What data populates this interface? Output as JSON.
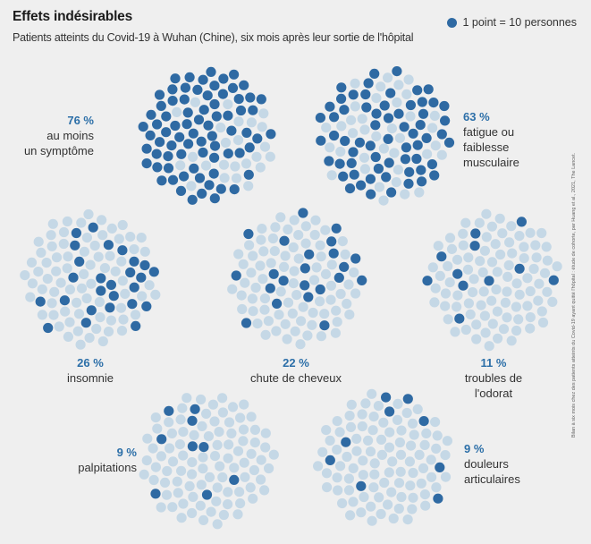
{
  "header": {
    "title": "Effets indésirables",
    "subtitle": "Patients atteints du Covid-19 à Wuhan (Chine), six mois après leur sortie de l'hôpital"
  },
  "legend": {
    "label": "1 point = 10 personnes"
  },
  "source": "Bilan à six mois chez des patients atteints du Covid-19 ayant quitté l'hôpital : étude de cohorte, par Huang et al., 2021, The Lancet.",
  "colors": {
    "highlight": "#2f6aa3",
    "base": "#c5d8e6",
    "accent_text": "#2c6fa8"
  },
  "chart_data": {
    "type": "dot-cluster",
    "unit": "1 point = 10 personnes",
    "panels": [
      {
        "percent_label": "76 %",
        "label": "au moins\nun symptôme",
        "value": 76
      },
      {
        "percent_label": "63 %",
        "label": "fatigue ou\nfaiblesse\nmusculaire",
        "value": 63
      },
      {
        "percent_label": "26 %",
        "label": "insomnie",
        "value": 26
      },
      {
        "percent_label": "22 %",
        "label": "chute de cheveux",
        "value": 22
      },
      {
        "percent_label": "11 %",
        "label": "troubles de l'odorat",
        "value": 11
      },
      {
        "percent_label": "9 %",
        "label": "palpitations",
        "value": 9
      },
      {
        "percent_label": "9 %",
        "label": "douleurs\narticulaires",
        "value": 9
      }
    ]
  }
}
